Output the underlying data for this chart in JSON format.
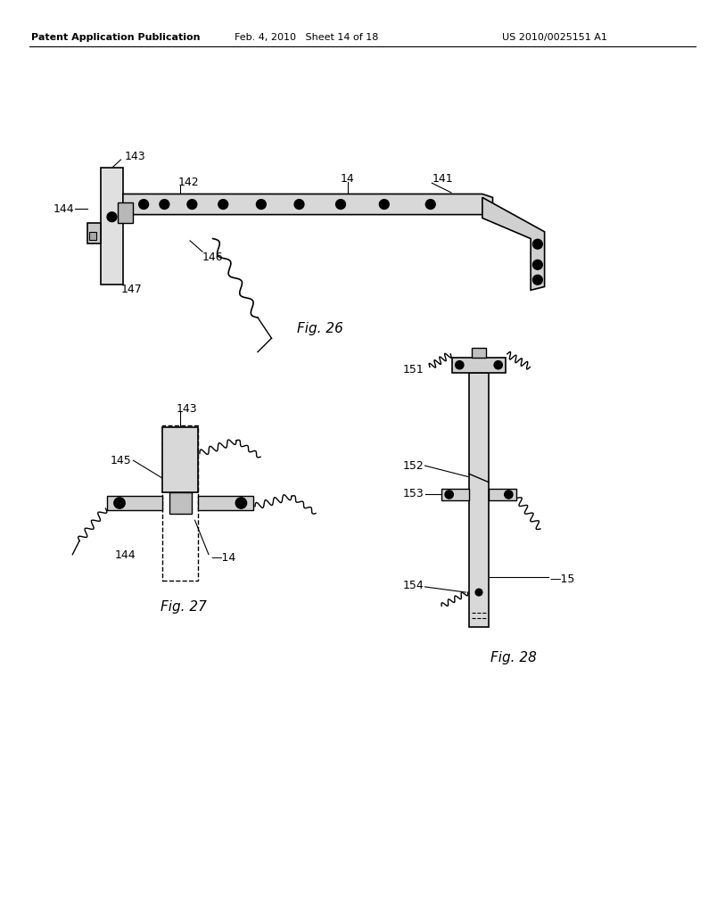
{
  "bg_color": "#ffffff",
  "header_left": "Patent Application Publication",
  "header_mid": "Feb. 4, 2010   Sheet 14 of 18",
  "header_right": "US 2010/0025151 A1",
  "fig26_label": "Fig. 26",
  "fig27_label": "Fig. 27",
  "fig28_label": "Fig. 28",
  "line_color": "#000000",
  "text_color": "#000000"
}
